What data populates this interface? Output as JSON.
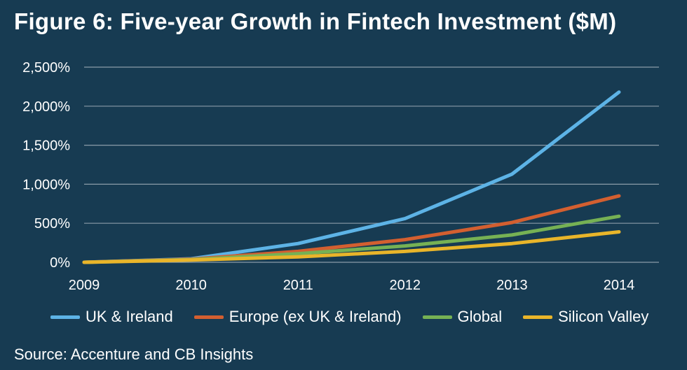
{
  "title": "Figure 6: Five-year Growth in Fintech Investment ($M)",
  "source": "Source: Accenture and CB Insights",
  "colors": {
    "background": "#173B52",
    "gridline": "#8A9BA8",
    "uk_ireland": "#5DB3E6",
    "europe": "#D35F30",
    "global": "#76B154",
    "silicon_valley": "#E9B52A"
  },
  "chart_data": {
    "type": "line",
    "title": "Figure 6: Five-year Growth in Fintech Investment ($M)",
    "xlabel": "",
    "ylabel": "",
    "x": [
      "2009",
      "2010",
      "2011",
      "2012",
      "2013",
      "2014"
    ],
    "ylim": [
      0,
      2500
    ],
    "yticks": [
      0,
      500,
      1000,
      1500,
      2000,
      2500
    ],
    "ytick_labels": [
      "0%",
      "500%",
      "1,000%",
      "1,500%",
      "2,000%",
      "2,500%"
    ],
    "grid": true,
    "legend_position": "bottom",
    "series": [
      {
        "name": "UK & Ireland",
        "color": "#5DB3E6",
        "values": [
          0,
          45,
          240,
          560,
          1130,
          2180
        ]
      },
      {
        "name": "Europe (ex UK & Ireland)",
        "color": "#D35F30",
        "values": [
          0,
          40,
          140,
          290,
          510,
          850
        ]
      },
      {
        "name": "Global",
        "color": "#76B154",
        "values": [
          0,
          35,
          110,
          210,
          350,
          590
        ]
      },
      {
        "name": "Silicon Valley",
        "color": "#E9B52A",
        "values": [
          0,
          30,
          70,
          140,
          240,
          390
        ]
      }
    ]
  }
}
